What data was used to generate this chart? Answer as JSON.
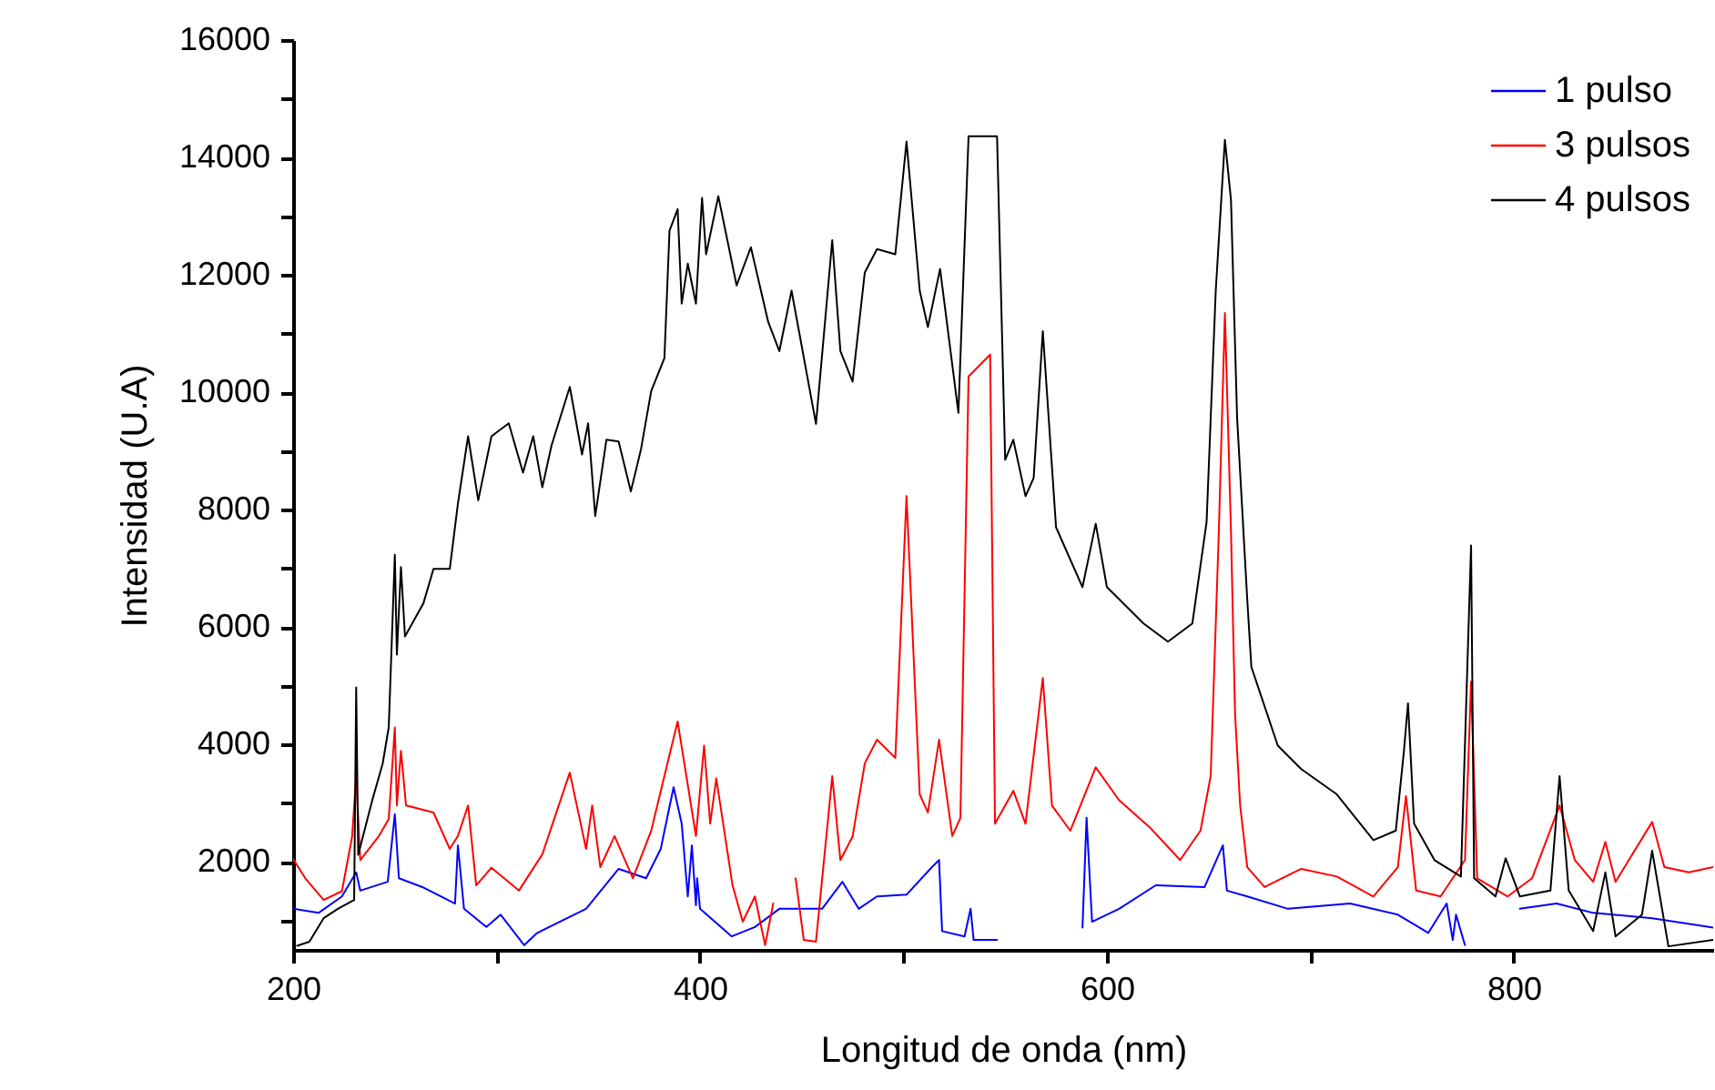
{
  "chart_data": {
    "type": "line",
    "xlabel": "Longitud de onda (nm)",
    "ylabel": "Intensidad (U.A)",
    "xlim": [
      200,
      898
    ],
    "xticks": [
      200,
      {
        "value": 300,
        "label": null
      },
      400,
      {
        "value": 500,
        "label": null
      },
      600,
      {
        "value": 700,
        "label": null
      },
      800
    ],
    "ylim": [
      500,
      16000
    ],
    "yticks": [
      {
        "value": 1000,
        "label": null
      },
      2000,
      {
        "value": 3000,
        "label": null
      },
      4000,
      {
        "value": 5000,
        "label": null
      },
      6000,
      {
        "value": 7000,
        "label": null
      },
      8000,
      {
        "value": 9000,
        "label": null
      },
      10000,
      {
        "value": 11000,
        "label": null
      },
      12000,
      {
        "value": 13000,
        "label": null
      },
      14000,
      {
        "value": 15000,
        "label": null
      },
      16000
    ],
    "grid": false,
    "legend": "top right",
    "line_style": "solid",
    "marker": "none",
    "series": [
      {
        "name": "1 pulso",
        "color": "#0000ff",
        "x": [
          200,
          212.5,
          224,
          231,
          233,
          246.5,
          250,
          252,
          263.5,
          279.6,
          281,
          284,
          295,
          302,
          313.6,
          320,
          344,
          360,
          373.5,
          380.7,
          387,
          391,
          394,
          396,
          398,
          398.6,
          400,
          415.6,
          427,
          439,
          460,
          470,
          478,
          487,
          501.5,
          514,
          517.5,
          519,
          530,
          533,
          534.5,
          546,
          559,
          570,
          588,
          590,
          592.7,
          606,
          624,
          648,
          657,
          659,
          669,
          689,
          719.5,
          743,
          758,
          767,
          770,
          771.6,
          776,
          787.7,
          803,
          821,
          839,
          868,
          898
        ],
        "values": [
          1200,
          1130,
          1410,
          1820,
          1510,
          1660,
          2810,
          1720,
          1570,
          1290,
          2280,
          1200,
          890,
          1100,
          580,
          790,
          1200,
          1880,
          1720,
          2220,
          3270,
          2650,
          1410,
          2280,
          1260,
          1720,
          1200,
          730,
          890,
          1200,
          1200,
          1660,
          1200,
          1410,
          1440,
          1910,
          2030,
          820,
          730,
          1200,
          670,
          670,
          null,
          null,
          880,
          2750,
          980,
          1200,
          1600,
          1570,
          2280,
          1510,
          1410,
          1200,
          1290,
          1100,
          790,
          1290,
          670,
          1100,
          580,
          null,
          1200,
          1290,
          1130,
          1040,
          880
        ]
      },
      {
        "name": "3 pulsos",
        "color": "#ff0000",
        "x": [
          200,
          206,
          215,
          224,
          229,
          231,
          233,
          242,
          247,
          250,
          251,
          253,
          255.5,
          269,
          277,
          281,
          286,
          290,
          297.5,
          311,
          322.5,
          336,
          344,
          347,
          351,
          358,
          367,
          376,
          389,
          398,
          402,
          405,
          408,
          416,
          421,
          427,
          432,
          436,
          440.6,
          447,
          451,
          457,
          465,
          469,
          475,
          481,
          487,
          496,
          501.5,
          508,
          512,
          517.5,
          524,
          528,
          532,
          542.6,
          545,
          554,
          560,
          568.5,
          573,
          582,
          594.5,
          606,
          621,
          636,
          646,
          651,
          655,
          658,
          661,
          663,
          665.5,
          669,
          677.5,
          695.5,
          713,
          731,
          743,
          747,
          752,
          764,
          776,
          779,
          782,
          797,
          809,
          822.5,
          830,
          839,
          845,
          850,
          868,
          874,
          886,
          898
        ],
        "values": [
          2050,
          1720,
          1350,
          1500,
          2430,
          3460,
          2030,
          2430,
          2730,
          4290,
          2960,
          3890,
          2960,
          2840,
          2220,
          2440,
          2960,
          1600,
          1900,
          1510,
          2130,
          3520,
          2220,
          2960,
          1910,
          2440,
          1720,
          2530,
          4390,
          2440,
          3980,
          2650,
          3420,
          1600,
          980,
          1410,
          580,
          1290,
          null,
          1720,
          670,
          640,
          3460,
          2030,
          2430,
          3680,
          4080,
          3770,
          8230,
          3150,
          2840,
          4080,
          2440,
          2750,
          10270,
          10640,
          2650,
          3210,
          2650,
          5130,
          2960,
          2530,
          3610,
          3050,
          2590,
          2030,
          2530,
          3460,
          7610,
          11350,
          7610,
          4510,
          2960,
          1910,
          1570,
          1880,
          1750,
          1410,
          1910,
          3120,
          1510,
          1410,
          2030,
          5070,
          1720,
          1410,
          1720,
          2960,
          2030,
          1660,
          2340,
          1660,
          2680,
          1910,
          1820,
          1910
        ]
      },
      {
        "name": "4 pulsos",
        "color": "#000000",
        "x": [
          202,
          208,
          215,
          222,
          230,
          231,
          232,
          239,
          244,
          247,
          250,
          251,
          253,
          255,
          264,
          269,
          277,
          281,
          286,
          291,
          297.5,
          306,
          313,
          318,
          322.5,
          327,
          336,
          342,
          345,
          348.5,
          354,
          360,
          366,
          371,
          376,
          382.5,
          385,
          389,
          391,
          394,
          398,
          401,
          403,
          409,
          418,
          425,
          433.5,
          439,
          445,
          457,
          465,
          469,
          475,
          481,
          487,
          496,
          501.5,
          508,
          512,
          518,
          527,
          532,
          546,
          550,
          554,
          560,
          564,
          568.5,
          575,
          588,
          594.5,
          600,
          618,
          630,
          642,
          649,
          653.5,
          658,
          661,
          664,
          669,
          671,
          684,
          695.5,
          713,
          731,
          742,
          746,
          748,
          751,
          761,
          774,
          779,
          780.5,
          791,
          796,
          803,
          818,
          822.5,
          827,
          839,
          845,
          850,
          863,
          868,
          876,
          898
        ],
        "values": [
          570,
          640,
          1040,
          1200,
          1350,
          4970,
          2120,
          3060,
          3670,
          4290,
          7230,
          5530,
          7020,
          5840,
          6400,
          6990,
          6990,
          8100,
          9250,
          8160,
          9250,
          9470,
          8630,
          9250,
          8380,
          9090,
          10090,
          8940,
          9470,
          7890,
          9190,
          9160,
          8310,
          9030,
          10020,
          10580,
          12750,
          13120,
          11510,
          12190,
          11510,
          13310,
          12350,
          13340,
          11820,
          12470,
          11200,
          10700,
          11730,
          9460,
          12590,
          10700,
          10180,
          12040,
          12440,
          12350,
          14270,
          11730,
          11110,
          12100,
          9650,
          14360,
          14360,
          8850,
          9190,
          8230,
          8540,
          11040,
          7700,
          6680,
          7760,
          6680,
          6060,
          5750,
          6060,
          7790,
          11730,
          14300,
          13270,
          9560,
          6460,
          5320,
          3980,
          3580,
          3150,
          2370,
          2530,
          3890,
          4700,
          2650,
          2030,
          1750,
          7390,
          1720,
          1410,
          2060,
          1410,
          1510,
          3460,
          1510,
          820,
          1820,
          730,
          1100,
          2190,
          560,
          670
        ]
      }
    ]
  }
}
